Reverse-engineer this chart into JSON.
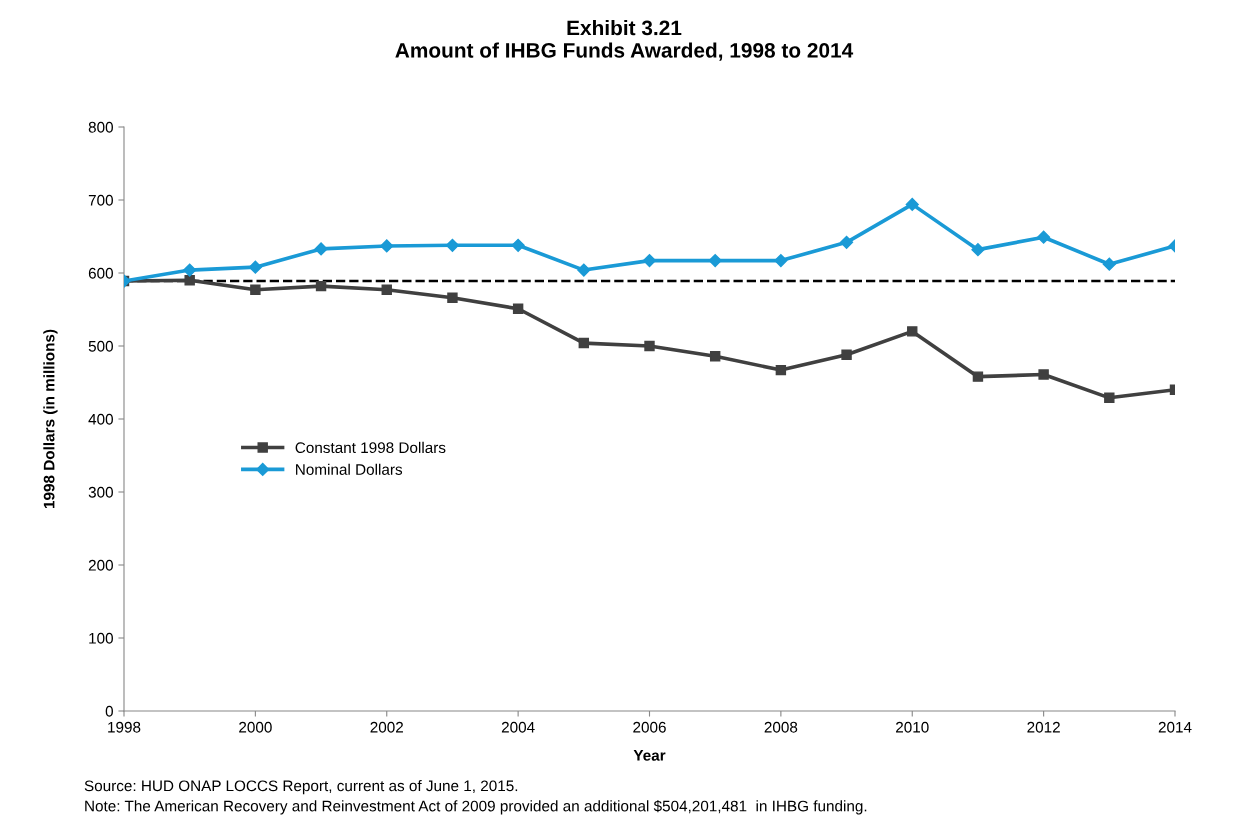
{
  "chart_data": {
    "type": "line",
    "title": "Exhibit 3.21\nAmount of IHBG Funds Awarded, 1998 to 2014",
    "xlabel": "Year",
    "ylabel": "1998 Dollars (in millions)",
    "x": [
      1998,
      1999,
      2000,
      2001,
      2002,
      2003,
      2004,
      2005,
      2006,
      2007,
      2008,
      2009,
      2010,
      2011,
      2012,
      2013,
      2014
    ],
    "series": [
      {
        "name": "Constant 1998 Dollars",
        "color": "#404040",
        "marker": "square",
        "values": [
          589,
          590,
          577,
          582,
          577,
          566,
          551,
          504,
          500,
          486,
          467,
          488,
          520,
          458,
          461,
          429,
          440
        ]
      },
      {
        "name": "Nominal Dollars",
        "color": "#1a9ad6",
        "marker": "diamond",
        "values": [
          589,
          604,
          608,
          633,
          637,
          638,
          638,
          604,
          617,
          617,
          617,
          642,
          694,
          632,
          649,
          612,
          637
        ]
      }
    ],
    "xlim": [
      1998,
      2014
    ],
    "xticks": [
      1998,
      2000,
      2002,
      2004,
      2006,
      2008,
      2010,
      2012,
      2014
    ],
    "ylim": [
      0,
      800
    ],
    "yticks": [
      0,
      100,
      200,
      300,
      400,
      500,
      600,
      700,
      800
    ],
    "ref_lines": [
      {
        "axis": "y",
        "value": 589,
        "color": "#000000",
        "line_style": "dashed"
      }
    ],
    "grid": false,
    "legend": "center left",
    "annotations": [
      "Source: HUD ONAP LOCCS Report, current as of June 1, 2015.",
      "Note: The American Recovery and Reinvestment Act of 2009 provided an additional $504,201,481  in IHBG funding."
    ]
  }
}
